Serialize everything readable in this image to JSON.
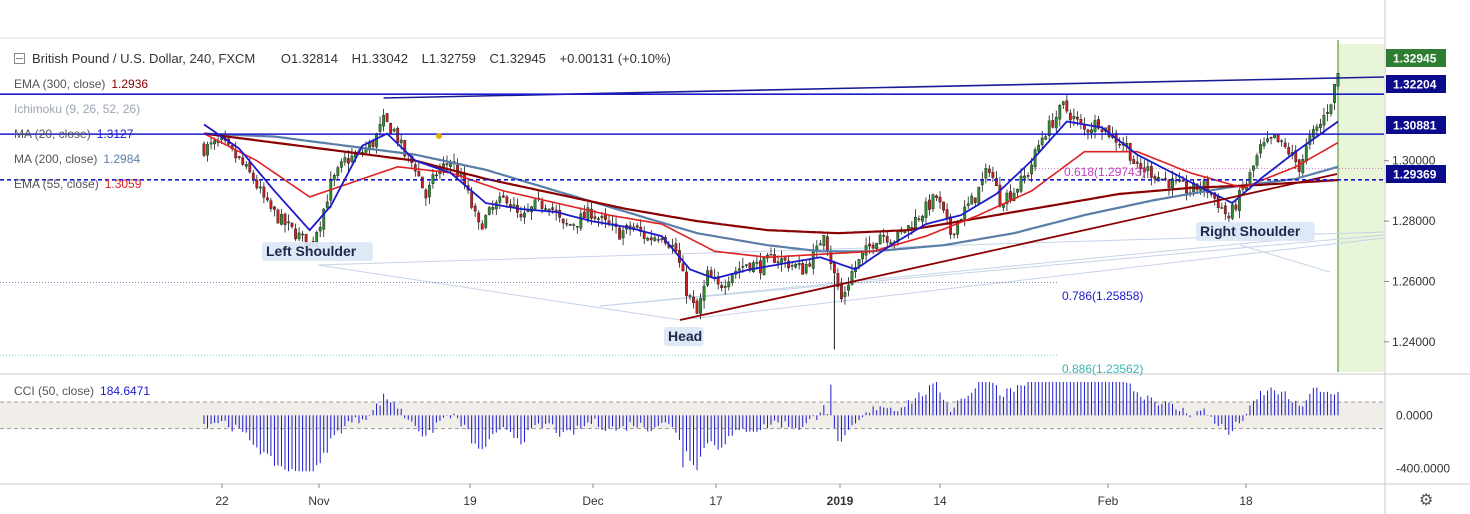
{
  "header": {
    "symbol": "British Pound / U.S. Dollar, 240, FXCM",
    "open": "O1.32814",
    "high": "H1.33042",
    "low": "L1.32759",
    "close": "C1.32945",
    "change": "+0.00131 (+0.10%)"
  },
  "indicators": [
    {
      "label": "EMA (300, close)",
      "value": "1.2936",
      "color": "#8b0000"
    },
    {
      "label": "Ichimoku (9, 26, 52, 26)",
      "value": "",
      "color": "#9aa4b1"
    },
    {
      "label": "MA (20, close)",
      "value": "1.3127",
      "color": "#1a1acc"
    },
    {
      "label": "MA (200, close)",
      "value": "1.2984",
      "color": "#5a7ea8"
    },
    {
      "label": "EMA (55, close)",
      "value": "1.3059",
      "color": "#e02020"
    }
  ],
  "cci": {
    "label": "CCI (50, close)",
    "value": "184.6471"
  },
  "annotations": {
    "left_shoulder": "Left Shoulder",
    "head": "Head",
    "right_shoulder": "Right Shoulder",
    "fib_618": "0.618(1.29743)",
    "fib_786": "0.786(1.25858)",
    "fib_886": "0.886(1.23562)"
  },
  "price_badges": [
    {
      "text": "1.32945",
      "value": 1.32945,
      "bg": "#2e7d32"
    },
    {
      "text": "1.32204",
      "value": 1.32204,
      "bg": "#0a0a8a"
    },
    {
      "text": "1.30881",
      "value": 1.30881,
      "bg": "#0a0a8a"
    },
    {
      "text": "1.29369",
      "value": 1.29369,
      "bg": "#0a0a8a"
    }
  ],
  "chart_data": {
    "type": "candlestick",
    "price_axis": {
      "ticks": [
        "1.30000",
        "1.28000",
        "1.26000",
        "1.24000"
      ],
      "range": [
        1.23,
        1.34
      ]
    },
    "time_axis": {
      "labels": [
        "22",
        "Nov",
        "19",
        "Dec",
        "17",
        "2019",
        "14",
        "Feb",
        "18"
      ]
    },
    "cci_axis": {
      "ticks": [
        "0.0000",
        "-400.0000"
      ],
      "range": [
        -500,
        280
      ]
    },
    "horizontal_levels": [
      1.32204,
      1.30881,
      1.29369
    ],
    "fib_levels": [
      {
        "label": "0.618(1.29743)",
        "value": 1.29743
      },
      {
        "label": "0.786(1.25858)",
        "value": 1.25858
      },
      {
        "label": "0.886(1.23562)",
        "value": 1.23562
      }
    ],
    "close_path": [
      [
        0,
        1.304
      ],
      [
        5,
        1.306
      ],
      [
        10,
        1.3
      ],
      [
        14,
        1.294
      ],
      [
        18,
        1.285
      ],
      [
        22,
        1.28
      ],
      [
        26,
        1.276
      ],
      [
        30,
        1.272
      ],
      [
        33,
        1.28
      ],
      [
        36,
        1.292
      ],
      [
        40,
        1.3
      ],
      [
        44,
        1.302
      ],
      [
        48,
        1.306
      ],
      [
        51,
        1.313
      ],
      [
        54,
        1.31
      ],
      [
        57,
        1.302
      ],
      [
        60,
        1.298
      ],
      [
        63,
        1.288
      ],
      [
        66,
        1.296
      ],
      [
        70,
        1.3
      ],
      [
        74,
        1.292
      ],
      [
        78,
        1.278
      ],
      [
        82,
        1.284
      ],
      [
        86,
        1.288
      ],
      [
        90,
        1.28
      ],
      [
        94,
        1.285
      ],
      [
        98,
        1.286
      ],
      [
        102,
        1.278
      ],
      [
        106,
        1.28
      ],
      [
        110,
        1.283
      ],
      [
        114,
        1.279
      ],
      [
        118,
        1.276
      ],
      [
        122,
        1.278
      ],
      [
        126,
        1.274
      ],
      [
        130,
        1.276
      ],
      [
        134,
        1.27
      ],
      [
        137,
        1.257
      ],
      [
        140,
        1.249
      ],
      [
        143,
        1.262
      ],
      [
        146,
        1.258
      ],
      [
        150,
        1.263
      ],
      [
        154,
        1.266
      ],
      [
        158,
        1.265
      ],
      [
        162,
        1.268
      ],
      [
        166,
        1.266
      ],
      [
        170,
        1.264
      ],
      [
        174,
        1.27
      ],
      [
        176,
        1.277
      ],
      [
        179,
        1.262
      ],
      [
        181,
        1.254
      ],
      [
        184,
        1.263
      ],
      [
        188,
        1.27
      ],
      [
        192,
        1.276
      ],
      [
        196,
        1.274
      ],
      [
        200,
        1.278
      ],
      [
        204,
        1.283
      ],
      [
        208,
        1.288
      ],
      [
        212,
        1.276
      ],
      [
        215,
        1.282
      ],
      [
        219,
        1.288
      ],
      [
        223,
        1.298
      ],
      [
        226,
        1.287
      ],
      [
        230,
        1.29
      ],
      [
        234,
        1.296
      ],
      [
        238,
        1.308
      ],
      [
        241,
        1.313
      ],
      [
        244,
        1.318
      ],
      [
        247,
        1.314
      ],
      [
        250,
        1.31
      ],
      [
        254,
        1.313
      ],
      [
        258,
        1.308
      ],
      [
        262,
        1.305
      ],
      [
        265,
        1.297
      ],
      [
        268,
        1.297
      ],
      [
        272,
        1.294
      ],
      [
        276,
        1.292
      ],
      [
        280,
        1.29
      ],
      [
        284,
        1.292
      ],
      [
        288,
        1.286
      ],
      [
        291,
        1.281
      ],
      [
        294,
        1.288
      ],
      [
        297,
        1.295
      ],
      [
        300,
        1.304
      ],
      [
        304,
        1.307
      ],
      [
        308,
        1.303
      ],
      [
        311,
        1.298
      ],
      [
        314,
        1.307
      ],
      [
        317,
        1.312
      ],
      [
        320,
        1.32
      ],
      [
        322,
        1.329
      ]
    ],
    "ma20_path": [
      [
        0,
        1.312
      ],
      [
        10,
        1.304
      ],
      [
        20,
        1.29
      ],
      [
        30,
        1.277
      ],
      [
        36,
        1.285
      ],
      [
        45,
        1.305
      ],
      [
        52,
        1.309
      ],
      [
        60,
        1.3
      ],
      [
        70,
        1.296
      ],
      [
        80,
        1.286
      ],
      [
        90,
        1.284
      ],
      [
        100,
        1.283
      ],
      [
        110,
        1.28
      ],
      [
        120,
        1.278
      ],
      [
        130,
        1.275
      ],
      [
        138,
        1.264
      ],
      [
        145,
        1.261
      ],
      [
        155,
        1.264
      ],
      [
        165,
        1.266
      ],
      [
        175,
        1.268
      ],
      [
        185,
        1.264
      ],
      [
        195,
        1.272
      ],
      [
        205,
        1.279
      ],
      [
        215,
        1.282
      ],
      [
        225,
        1.289
      ],
      [
        235,
        1.3
      ],
      [
        245,
        1.313
      ],
      [
        255,
        1.311
      ],
      [
        265,
        1.302
      ],
      [
        275,
        1.296
      ],
      [
        285,
        1.29
      ],
      [
        292,
        1.286
      ],
      [
        300,
        1.294
      ],
      [
        310,
        1.303
      ],
      [
        322,
        1.313
      ]
    ],
    "ema55_path": [
      [
        0,
        1.309
      ],
      [
        15,
        1.3
      ],
      [
        30,
        1.288
      ],
      [
        45,
        1.294
      ],
      [
        55,
        1.298
      ],
      [
        70,
        1.296
      ],
      [
        85,
        1.29
      ],
      [
        100,
        1.286
      ],
      [
        115,
        1.282
      ],
      [
        130,
        1.279
      ],
      [
        145,
        1.27
      ],
      [
        160,
        1.268
      ],
      [
        175,
        1.269
      ],
      [
        190,
        1.27
      ],
      [
        205,
        1.275
      ],
      [
        220,
        1.282
      ],
      [
        235,
        1.29
      ],
      [
        250,
        1.303
      ],
      [
        265,
        1.303
      ],
      [
        280,
        1.296
      ],
      [
        295,
        1.291
      ],
      [
        310,
        1.298
      ],
      [
        322,
        1.306
      ]
    ],
    "ma200_path": [
      [
        0,
        1.309
      ],
      [
        20,
        1.308
      ],
      [
        40,
        1.305
      ],
      [
        60,
        1.302
      ],
      [
        80,
        1.297
      ],
      [
        100,
        1.29
      ],
      [
        120,
        1.283
      ],
      [
        140,
        1.276
      ],
      [
        160,
        1.272
      ],
      [
        175,
        1.27
      ],
      [
        190,
        1.27
      ],
      [
        210,
        1.272
      ],
      [
        230,
        1.276
      ],
      [
        250,
        1.282
      ],
      [
        270,
        1.287
      ],
      [
        290,
        1.291
      ],
      [
        310,
        1.294
      ],
      [
        322,
        1.298
      ]
    ],
    "ema300_path": [
      [
        0,
        1.309
      ],
      [
        20,
        1.306
      ],
      [
        40,
        1.303
      ],
      [
        60,
        1.3
      ],
      [
        80,
        1.294
      ],
      [
        100,
        1.289
      ],
      [
        120,
        1.284
      ],
      [
        140,
        1.28
      ],
      [
        160,
        1.277
      ],
      [
        180,
        1.276
      ],
      [
        200,
        1.277
      ],
      [
        220,
        1.281
      ],
      [
        240,
        1.285
      ],
      [
        260,
        1.289
      ],
      [
        280,
        1.291
      ],
      [
        300,
        1.292
      ],
      [
        322,
        1.2936
      ]
    ]
  }
}
